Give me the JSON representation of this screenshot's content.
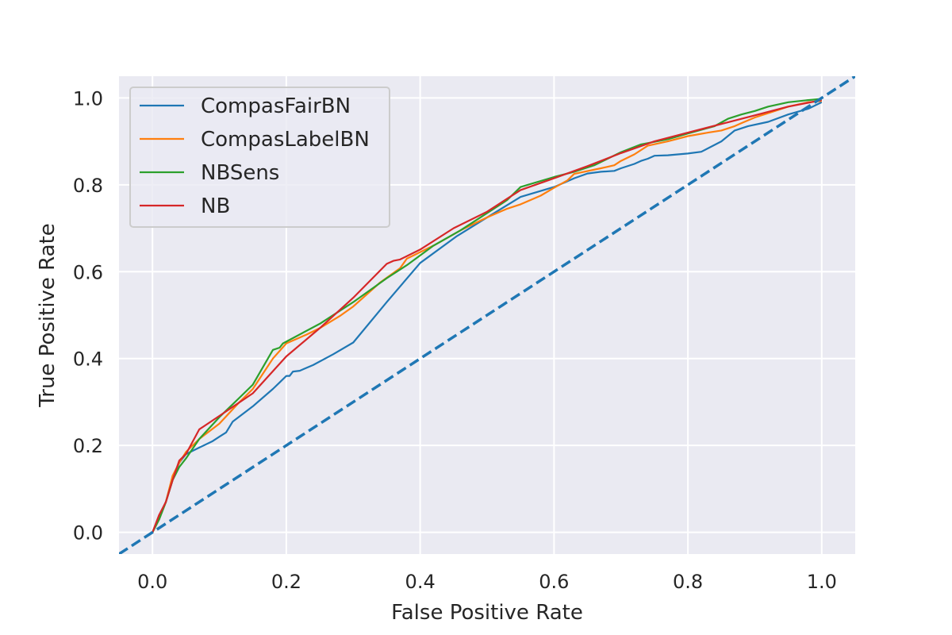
{
  "chart_data": {
    "type": "line",
    "title": "",
    "xlabel": "False Positive Rate",
    "ylabel": "True Positive Rate",
    "xlim": [
      -0.05,
      1.05
    ],
    "ylim": [
      -0.05,
      1.05
    ],
    "x_ticks": [
      "0.0",
      "0.2",
      "0.4",
      "0.6",
      "0.8",
      "1.0"
    ],
    "y_ticks": [
      "0.0",
      "0.2",
      "0.4",
      "0.6",
      "0.8",
      "1.0"
    ],
    "grid": true,
    "legend_position": "upper-left",
    "background_color": "#EAEAF2",
    "series": [
      {
        "name": "CompasFairBN",
        "color": "#1F77B4",
        "points": [
          [
            0.0,
            0.0
          ],
          [
            0.01,
            0.03
          ],
          [
            0.02,
            0.07
          ],
          [
            0.03,
            0.12
          ],
          [
            0.04,
            0.16
          ],
          [
            0.05,
            0.18
          ],
          [
            0.07,
            0.195
          ],
          [
            0.09,
            0.21
          ],
          [
            0.1,
            0.22
          ],
          [
            0.11,
            0.23
          ],
          [
            0.12,
            0.255
          ],
          [
            0.15,
            0.29
          ],
          [
            0.18,
            0.33
          ],
          [
            0.19,
            0.345
          ],
          [
            0.2,
            0.36
          ],
          [
            0.205,
            0.36
          ],
          [
            0.21,
            0.37
          ],
          [
            0.22,
            0.372
          ],
          [
            0.24,
            0.385
          ],
          [
            0.27,
            0.41
          ],
          [
            0.3,
            0.437
          ],
          [
            0.35,
            0.53
          ],
          [
            0.4,
            0.62
          ],
          [
            0.455,
            0.682
          ],
          [
            0.5,
            0.725
          ],
          [
            0.55,
            0.772
          ],
          [
            0.6,
            0.795
          ],
          [
            0.62,
            0.808
          ],
          [
            0.63,
            0.815
          ],
          [
            0.65,
            0.826
          ],
          [
            0.67,
            0.83
          ],
          [
            0.69,
            0.832
          ],
          [
            0.7,
            0.838
          ],
          [
            0.72,
            0.848
          ],
          [
            0.73,
            0.855
          ],
          [
            0.74,
            0.86
          ],
          [
            0.75,
            0.867
          ],
          [
            0.77,
            0.868
          ],
          [
            0.8,
            0.872
          ],
          [
            0.82,
            0.876
          ],
          [
            0.85,
            0.9
          ],
          [
            0.87,
            0.925
          ],
          [
            0.89,
            0.935
          ],
          [
            0.92,
            0.945
          ],
          [
            0.95,
            0.962
          ],
          [
            0.98,
            0.975
          ],
          [
            1.0,
            0.99
          ]
        ]
      },
      {
        "name": "CompasLabelBN",
        "color": "#FF7F0E",
        "points": [
          [
            0.0,
            0.0
          ],
          [
            0.01,
            0.03
          ],
          [
            0.02,
            0.07
          ],
          [
            0.03,
            0.13
          ],
          [
            0.04,
            0.16
          ],
          [
            0.05,
            0.185
          ],
          [
            0.07,
            0.215
          ],
          [
            0.1,
            0.25
          ],
          [
            0.13,
            0.3
          ],
          [
            0.15,
            0.33
          ],
          [
            0.18,
            0.4
          ],
          [
            0.2,
            0.435
          ],
          [
            0.23,
            0.455
          ],
          [
            0.25,
            0.47
          ],
          [
            0.28,
            0.498
          ],
          [
            0.3,
            0.52
          ],
          [
            0.34,
            0.575
          ],
          [
            0.37,
            0.608
          ],
          [
            0.38,
            0.63
          ],
          [
            0.42,
            0.66
          ],
          [
            0.46,
            0.695
          ],
          [
            0.5,
            0.725
          ],
          [
            0.53,
            0.745
          ],
          [
            0.55,
            0.755
          ],
          [
            0.58,
            0.775
          ],
          [
            0.6,
            0.793
          ],
          [
            0.62,
            0.81
          ],
          [
            0.63,
            0.825
          ],
          [
            0.67,
            0.838
          ],
          [
            0.69,
            0.845
          ],
          [
            0.7,
            0.855
          ],
          [
            0.72,
            0.87
          ],
          [
            0.74,
            0.89
          ],
          [
            0.77,
            0.9
          ],
          [
            0.8,
            0.912
          ],
          [
            0.83,
            0.92
          ],
          [
            0.85,
            0.925
          ],
          [
            0.87,
            0.935
          ],
          [
            0.88,
            0.942
          ],
          [
            0.9,
            0.955
          ],
          [
            0.93,
            0.97
          ],
          [
            0.95,
            0.98
          ],
          [
            0.98,
            0.99
          ],
          [
            1.0,
            0.993
          ]
        ]
      },
      {
        "name": "NBSens",
        "color": "#2CA02C",
        "points": [
          [
            0.0,
            0.0
          ],
          [
            0.01,
            0.03
          ],
          [
            0.02,
            0.07
          ],
          [
            0.03,
            0.12
          ],
          [
            0.04,
            0.15
          ],
          [
            0.05,
            0.17
          ],
          [
            0.07,
            0.215
          ],
          [
            0.1,
            0.265
          ],
          [
            0.13,
            0.31
          ],
          [
            0.15,
            0.34
          ],
          [
            0.18,
            0.42
          ],
          [
            0.19,
            0.425
          ],
          [
            0.195,
            0.435
          ],
          [
            0.25,
            0.48
          ],
          [
            0.3,
            0.53
          ],
          [
            0.35,
            0.585
          ],
          [
            0.38,
            0.615
          ],
          [
            0.42,
            0.66
          ],
          [
            0.46,
            0.695
          ],
          [
            0.5,
            0.735
          ],
          [
            0.53,
            0.765
          ],
          [
            0.55,
            0.795
          ],
          [
            0.6,
            0.818
          ],
          [
            0.63,
            0.83
          ],
          [
            0.66,
            0.845
          ],
          [
            0.7,
            0.875
          ],
          [
            0.73,
            0.893
          ],
          [
            0.77,
            0.905
          ],
          [
            0.8,
            0.918
          ],
          [
            0.84,
            0.935
          ],
          [
            0.86,
            0.952
          ],
          [
            0.88,
            0.962
          ],
          [
            0.9,
            0.97
          ],
          [
            0.92,
            0.98
          ],
          [
            0.95,
            0.99
          ],
          [
            0.98,
            0.995
          ],
          [
            1.0,
            0.998
          ]
        ]
      },
      {
        "name": "NB",
        "color": "#D62728",
        "points": [
          [
            0.0,
            0.0
          ],
          [
            0.005,
            0.02
          ],
          [
            0.01,
            0.04
          ],
          [
            0.02,
            0.07
          ],
          [
            0.03,
            0.12
          ],
          [
            0.04,
            0.165
          ],
          [
            0.05,
            0.18
          ],
          [
            0.07,
            0.237
          ],
          [
            0.1,
            0.268
          ],
          [
            0.15,
            0.32
          ],
          [
            0.2,
            0.405
          ],
          [
            0.25,
            0.47
          ],
          [
            0.3,
            0.54
          ],
          [
            0.35,
            0.618
          ],
          [
            0.36,
            0.625
          ],
          [
            0.37,
            0.628
          ],
          [
            0.4,
            0.651
          ],
          [
            0.45,
            0.7
          ],
          [
            0.5,
            0.738
          ],
          [
            0.55,
            0.788
          ],
          [
            0.6,
            0.815
          ],
          [
            0.65,
            0.843
          ],
          [
            0.7,
            0.873
          ],
          [
            0.75,
            0.9
          ],
          [
            0.8,
            0.92
          ],
          [
            0.85,
            0.94
          ],
          [
            0.9,
            0.96
          ],
          [
            0.95,
            0.98
          ],
          [
            1.0,
            0.995
          ]
        ]
      },
      {
        "name": "",
        "color": "#1F77B4",
        "dashed": true,
        "points": [
          [
            -0.05,
            -0.05
          ],
          [
            1.05,
            1.05
          ]
        ]
      }
    ]
  }
}
